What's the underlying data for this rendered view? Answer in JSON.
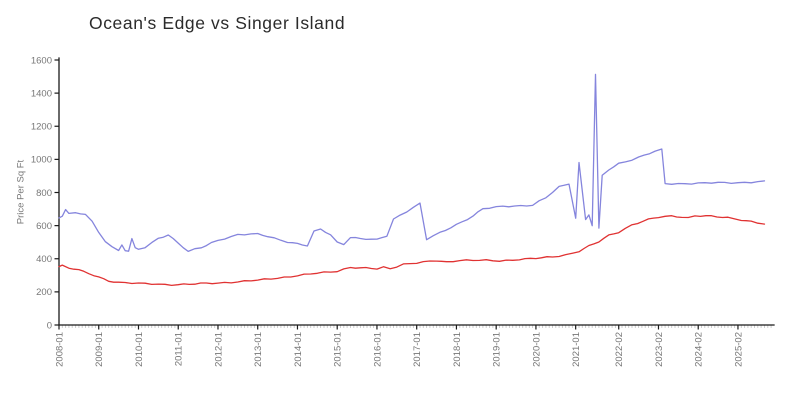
{
  "chart_data": {
    "type": "line",
    "title": "Ocean's Edge vs Singer Island",
    "xlabel": "",
    "ylabel": "Price Per Sq Ft",
    "ylim": [
      0,
      1600
    ],
    "grid": false,
    "legend_position": "none",
    "y_ticks": [
      0,
      200,
      400,
      600,
      800,
      1000,
      1200,
      1400,
      1600
    ],
    "x_tick_labels": [
      "2008-01",
      "2009-01",
      "2010-01",
      "2011-01",
      "2012-01",
      "2013-01",
      "2014-01",
      "2015-01",
      "2016-01",
      "2017-01",
      "2018-01",
      "2019-01",
      "2020-01",
      "2021-01",
      "2022-02",
      "2023-02",
      "2024-02",
      "2025-02"
    ],
    "axis_color": "#1a1a1a",
    "tick_label_color": "#777777",
    "minor_tick_color": "#c9c9c9",
    "series": [
      {
        "name": "Ocean's Edge",
        "color": "#8585dd",
        "points": [
          [
            "2008-01",
            650
          ],
          [
            "2008-02",
            662
          ],
          [
            "2008-03",
            700
          ],
          [
            "2008-04",
            673
          ],
          [
            "2008-06",
            675
          ],
          [
            "2008-09",
            668
          ],
          [
            "2008-11",
            622
          ],
          [
            "2009-01",
            560
          ],
          [
            "2009-03",
            507
          ],
          [
            "2009-05",
            472
          ],
          [
            "2009-07",
            452
          ],
          [
            "2009-08",
            488
          ],
          [
            "2009-09",
            452
          ],
          [
            "2009-10",
            445
          ],
          [
            "2009-11",
            518
          ],
          [
            "2009-12",
            462
          ],
          [
            "2010-01",
            455
          ],
          [
            "2010-03",
            468
          ],
          [
            "2010-05",
            494
          ],
          [
            "2010-07",
            524
          ],
          [
            "2010-10",
            546
          ],
          [
            "2011-01",
            495
          ],
          [
            "2011-04",
            445
          ],
          [
            "2011-08",
            466
          ],
          [
            "2011-11",
            496
          ],
          [
            "2012-03",
            524
          ],
          [
            "2012-07",
            546
          ],
          [
            "2013-01",
            548
          ],
          [
            "2013-04",
            535
          ],
          [
            "2013-10",
            503
          ],
          [
            "2014-01",
            490
          ],
          [
            "2014-04",
            478
          ],
          [
            "2014-06",
            563
          ],
          [
            "2014-08",
            578
          ],
          [
            "2014-11",
            546
          ],
          [
            "2015-01",
            500
          ],
          [
            "2015-03",
            490
          ],
          [
            "2015-05",
            530
          ],
          [
            "2015-08",
            520
          ],
          [
            "2016-01",
            514
          ],
          [
            "2016-04",
            540
          ],
          [
            "2016-06",
            640
          ],
          [
            "2016-10",
            687
          ],
          [
            "2017-02",
            732
          ],
          [
            "2017-04",
            516
          ],
          [
            "2017-08",
            557
          ],
          [
            "2018-01",
            607
          ],
          [
            "2018-06",
            657
          ],
          [
            "2018-09",
            700
          ],
          [
            "2019-03",
            718
          ],
          [
            "2019-12",
            722
          ],
          [
            "2020-04",
            768
          ],
          [
            "2020-08",
            834
          ],
          [
            "2020-11",
            856
          ],
          [
            "2021-01",
            645
          ],
          [
            "2021-02",
            979
          ],
          [
            "2021-04",
            637
          ],
          [
            "2021-05",
            667
          ],
          [
            "2021-06",
            600
          ],
          [
            "2021-07",
            1510
          ],
          [
            "2021-08",
            580
          ],
          [
            "2021-09",
            900
          ],
          [
            "2021-11",
            938
          ],
          [
            "2022-02",
            975
          ],
          [
            "2022-08",
            1012
          ],
          [
            "2023-01",
            1048
          ],
          [
            "2023-03",
            1058
          ],
          [
            "2023-04",
            852
          ],
          [
            "2024-02",
            856
          ],
          [
            "2025-02",
            860
          ],
          [
            "2025-10",
            866
          ]
        ]
      },
      {
        "name": "Singer Island",
        "color": "#e03232",
        "points": [
          [
            "2008-01",
            352
          ],
          [
            "2008-02",
            360
          ],
          [
            "2008-04",
            346
          ],
          [
            "2008-07",
            330
          ],
          [
            "2008-10",
            310
          ],
          [
            "2009-01",
            288
          ],
          [
            "2009-04",
            268
          ],
          [
            "2009-07",
            258
          ],
          [
            "2010-01",
            250
          ],
          [
            "2010-07",
            246
          ],
          [
            "2011-01",
            244
          ],
          [
            "2011-06",
            247
          ],
          [
            "2012-01",
            254
          ],
          [
            "2012-07",
            261
          ],
          [
            "2013-01",
            270
          ],
          [
            "2013-07",
            284
          ],
          [
            "2014-01",
            298
          ],
          [
            "2014-07",
            312
          ],
          [
            "2015-01",
            326
          ],
          [
            "2015-05",
            349
          ],
          [
            "2015-08",
            344
          ],
          [
            "2016-01",
            339
          ],
          [
            "2016-03",
            349
          ],
          [
            "2016-05",
            341
          ],
          [
            "2016-09",
            368
          ],
          [
            "2017-01",
            374
          ],
          [
            "2017-07",
            388
          ],
          [
            "2017-10",
            380
          ],
          [
            "2018-02",
            392
          ],
          [
            "2018-08",
            390
          ],
          [
            "2019-02",
            387
          ],
          [
            "2019-08",
            397
          ],
          [
            "2020-01",
            402
          ],
          [
            "2020-06",
            410
          ],
          [
            "2020-10",
            424
          ],
          [
            "2021-02",
            446
          ],
          [
            "2021-05",
            476
          ],
          [
            "2021-08",
            502
          ],
          [
            "2021-11",
            540
          ],
          [
            "2022-02",
            562
          ],
          [
            "2022-06",
            606
          ],
          [
            "2022-11",
            636
          ],
          [
            "2023-02",
            650
          ],
          [
            "2023-06",
            658
          ],
          [
            "2023-09",
            654
          ],
          [
            "2023-11",
            648
          ],
          [
            "2024-01",
            660
          ],
          [
            "2024-06",
            655
          ],
          [
            "2024-11",
            648
          ],
          [
            "2025-03",
            636
          ],
          [
            "2025-06",
            625
          ],
          [
            "2025-10",
            608
          ]
        ]
      }
    ]
  }
}
